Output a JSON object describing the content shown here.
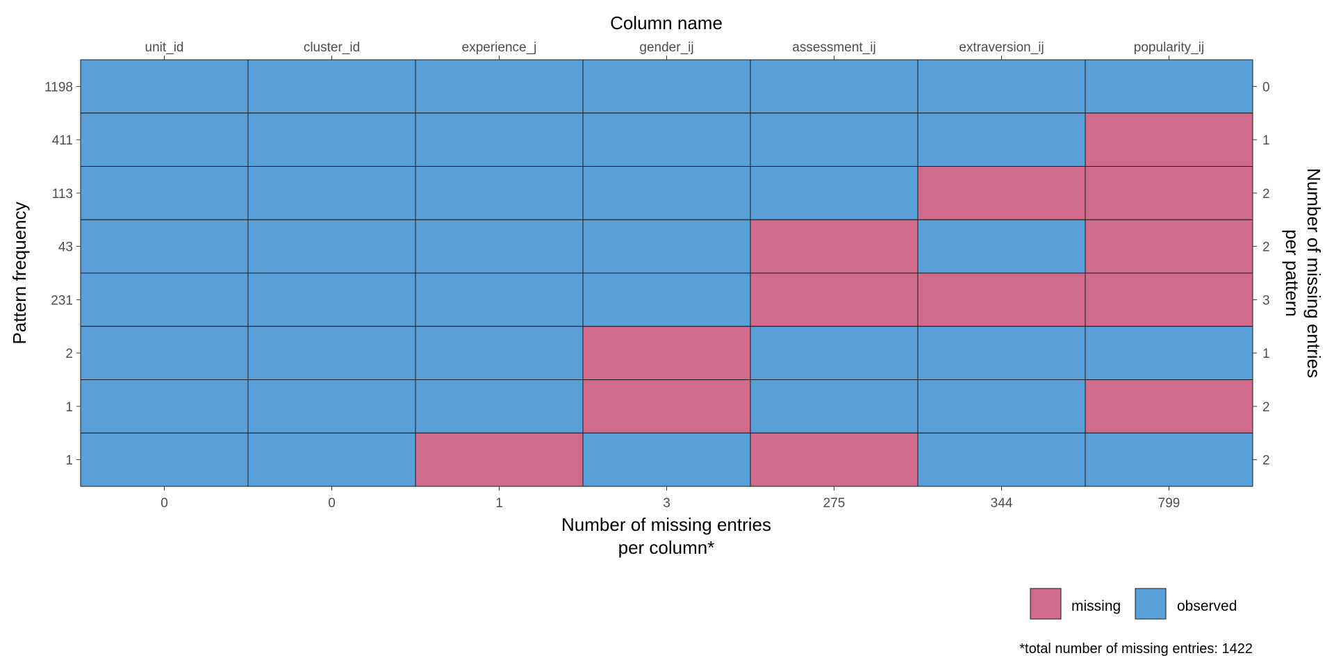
{
  "chart_data": {
    "type": "heatmap",
    "title": "",
    "x_title_top": "Column name",
    "x_title_bottom_line1": "Number of missing entries",
    "x_title_bottom_line2": "per column*",
    "y_title_left": "Pattern frequency",
    "y_title_right_line1": "Number of missing entries",
    "y_title_right_line2": "per pattern",
    "columns": [
      "unit_id",
      "cluster_id",
      "experience_j",
      "gender_ij",
      "assessment_ij",
      "extraversion_ij",
      "popularity_ij"
    ],
    "missing_per_column": [
      "0",
      "0",
      "1",
      "3",
      "275",
      "344",
      "799"
    ],
    "pattern_frequency": [
      "1198",
      "411",
      "113",
      "43",
      "231",
      "2",
      "1",
      "1"
    ],
    "missing_per_pattern": [
      "0",
      "1",
      "2",
      "2",
      "3",
      "1",
      "2",
      "2"
    ],
    "patterns": [
      [
        0,
        0,
        0,
        0,
        0,
        0,
        0
      ],
      [
        0,
        0,
        0,
        0,
        0,
        0,
        1
      ],
      [
        0,
        0,
        0,
        0,
        0,
        1,
        1
      ],
      [
        0,
        0,
        0,
        0,
        1,
        0,
        1
      ],
      [
        0,
        0,
        0,
        0,
        1,
        1,
        1
      ],
      [
        0,
        0,
        0,
        1,
        0,
        0,
        0
      ],
      [
        0,
        0,
        0,
        1,
        0,
        0,
        1
      ],
      [
        0,
        0,
        1,
        0,
        1,
        0,
        0
      ]
    ],
    "legend": {
      "position": "bottom-right",
      "items": [
        {
          "label": "missing",
          "color": "#d06b8c"
        },
        {
          "label": "observed",
          "color": "#5aa0d8"
        }
      ]
    },
    "footnote": "*total number of missing entries: 1422",
    "grid": false
  }
}
